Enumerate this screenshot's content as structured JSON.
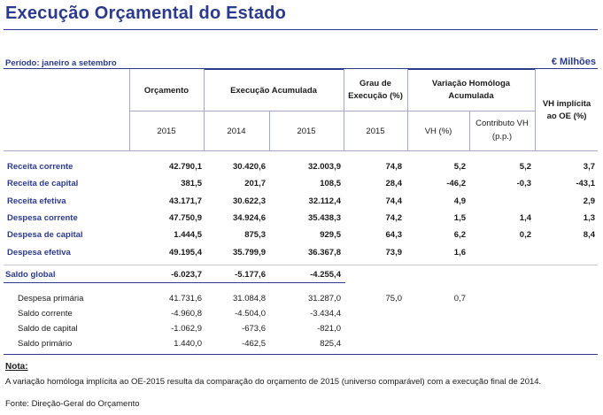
{
  "title": "Execução Orçamental do Estado",
  "period_label": "Período: janeiro a setembro",
  "units": "€ Milhões",
  "headers": {
    "orcamento": "Orçamento",
    "execucao_acumulada": "Execução Acumulada",
    "grau_line1": "Grau de",
    "grau_line2": "Execução (%)",
    "variacao_line1": "Variação Homóloga",
    "variacao_line2": "Acumulada",
    "vh_implicita_line1": "VH implícita",
    "vh_implicita_line2": "ao OE (%)",
    "year_orc": "2015",
    "year_exec_2014": "2014",
    "year_exec_2015": "2015",
    "year_grau": "2015",
    "vh": "VH (%)",
    "contributo_line1": "Contributo VH",
    "contributo_line2": "(p.p.)"
  },
  "rows": [
    {
      "label": "Receita corrente",
      "orc": "42.790,1",
      "e2014": "30.420,6",
      "e2015": "32.003,9",
      "grau": "74,8",
      "vh": "5,2",
      "contrib": "5,2",
      "vhi": "3,7"
    },
    {
      "label": "Receita de capital",
      "orc": "381,5",
      "e2014": "201,7",
      "e2015": "108,5",
      "grau": "28,4",
      "vh": "-46,2",
      "contrib": "-0,3",
      "vhi": "-43,1"
    },
    {
      "label": "Receita efetiva",
      "orc": "43.171,7",
      "e2014": "30.622,3",
      "e2015": "32.112,4",
      "grau": "74,4",
      "vh": "4,9",
      "contrib": "",
      "vhi": "2,9"
    },
    {
      "label": "Despesa corrente",
      "orc": "47.750,9",
      "e2014": "34.924,6",
      "e2015": "35.438,3",
      "grau": "74,2",
      "vh": "1,5",
      "contrib": "1,4",
      "vhi": "1,3"
    },
    {
      "label": "Despesa de capital",
      "orc": "1.444,5",
      "e2014": "875,3",
      "e2015": "929,5",
      "grau": "64,3",
      "vh": "6,2",
      "contrib": "0,2",
      "vhi": "8,4"
    },
    {
      "label": "Despesa efetiva",
      "orc": "49.195,4",
      "e2014": "35.799,9",
      "e2015": "36.367,8",
      "grau": "73,9",
      "vh": "1,6",
      "contrib": "",
      "vhi": ""
    }
  ],
  "saldo_global": {
    "label": "Saldo global",
    "orc": "-6.023,7",
    "e2014": "-5.177,6",
    "e2015": "-4.255,4"
  },
  "sub_rows": [
    {
      "label": "Despesa  primária",
      "orc": "41.731,6",
      "e2014": "31.084,8",
      "e2015": "31.287,0",
      "grau": "75,0",
      "vh": "0,7"
    },
    {
      "label": "Saldo corrente",
      "orc": "-4.960,8",
      "e2014": "-4.504,0",
      "e2015": "-3.434,4",
      "grau": "",
      "vh": ""
    },
    {
      "label": "Saldo de capital",
      "orc": "-1.062,9",
      "e2014": "-673,6",
      "e2015": "-821,0",
      "grau": "",
      "vh": ""
    },
    {
      "label": "Saldo primário",
      "orc": "1.440,0",
      "e2014": "-462,5",
      "e2015": "825,4",
      "grau": "",
      "vh": ""
    }
  ],
  "note_title": "Nota:",
  "note_text": "A variação homóloga implícita ao OE-2015 resulta da comparação do orçamento de 2015 (universo comparável) com a execução final de 2014.",
  "source": "Fonte: Direção-Geral do Orçamento"
}
